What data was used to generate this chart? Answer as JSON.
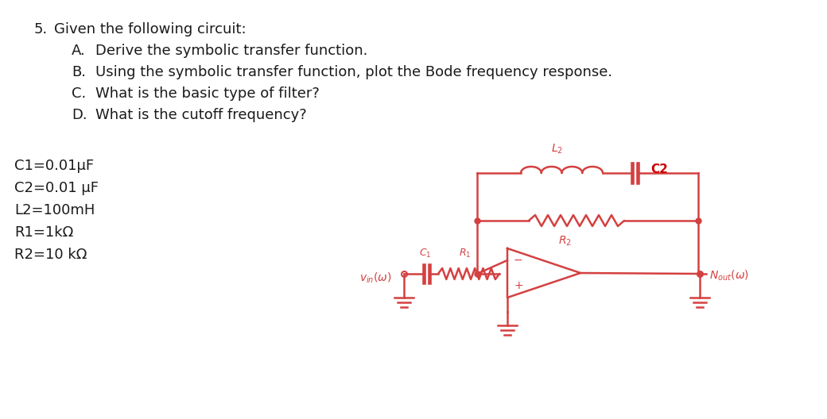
{
  "bg_color": "#ffffff",
  "text_color": "#1a1a1a",
  "circuit_color": "#d44040",
  "title_number": "5.",
  "title_text": "Given the following circuit:",
  "items": [
    {
      "label": "A.",
      "text": "Derive the symbolic transfer function."
    },
    {
      "label": "B.",
      "text": "Using the symbolic transfer function, plot the Bode frequency response."
    },
    {
      "label": "C.",
      "text": "What is the basic type of filter?"
    },
    {
      "label": "D.",
      "text": "What is the cutoff frequency?"
    }
  ],
  "params": [
    "C1=0.01μF",
    "C2=0.01 μF",
    "L2=100mH",
    "R1=1kΩ",
    "R2=10 kΩ"
  ],
  "figsize": [
    10.4,
    5.28
  ],
  "dpi": 100
}
